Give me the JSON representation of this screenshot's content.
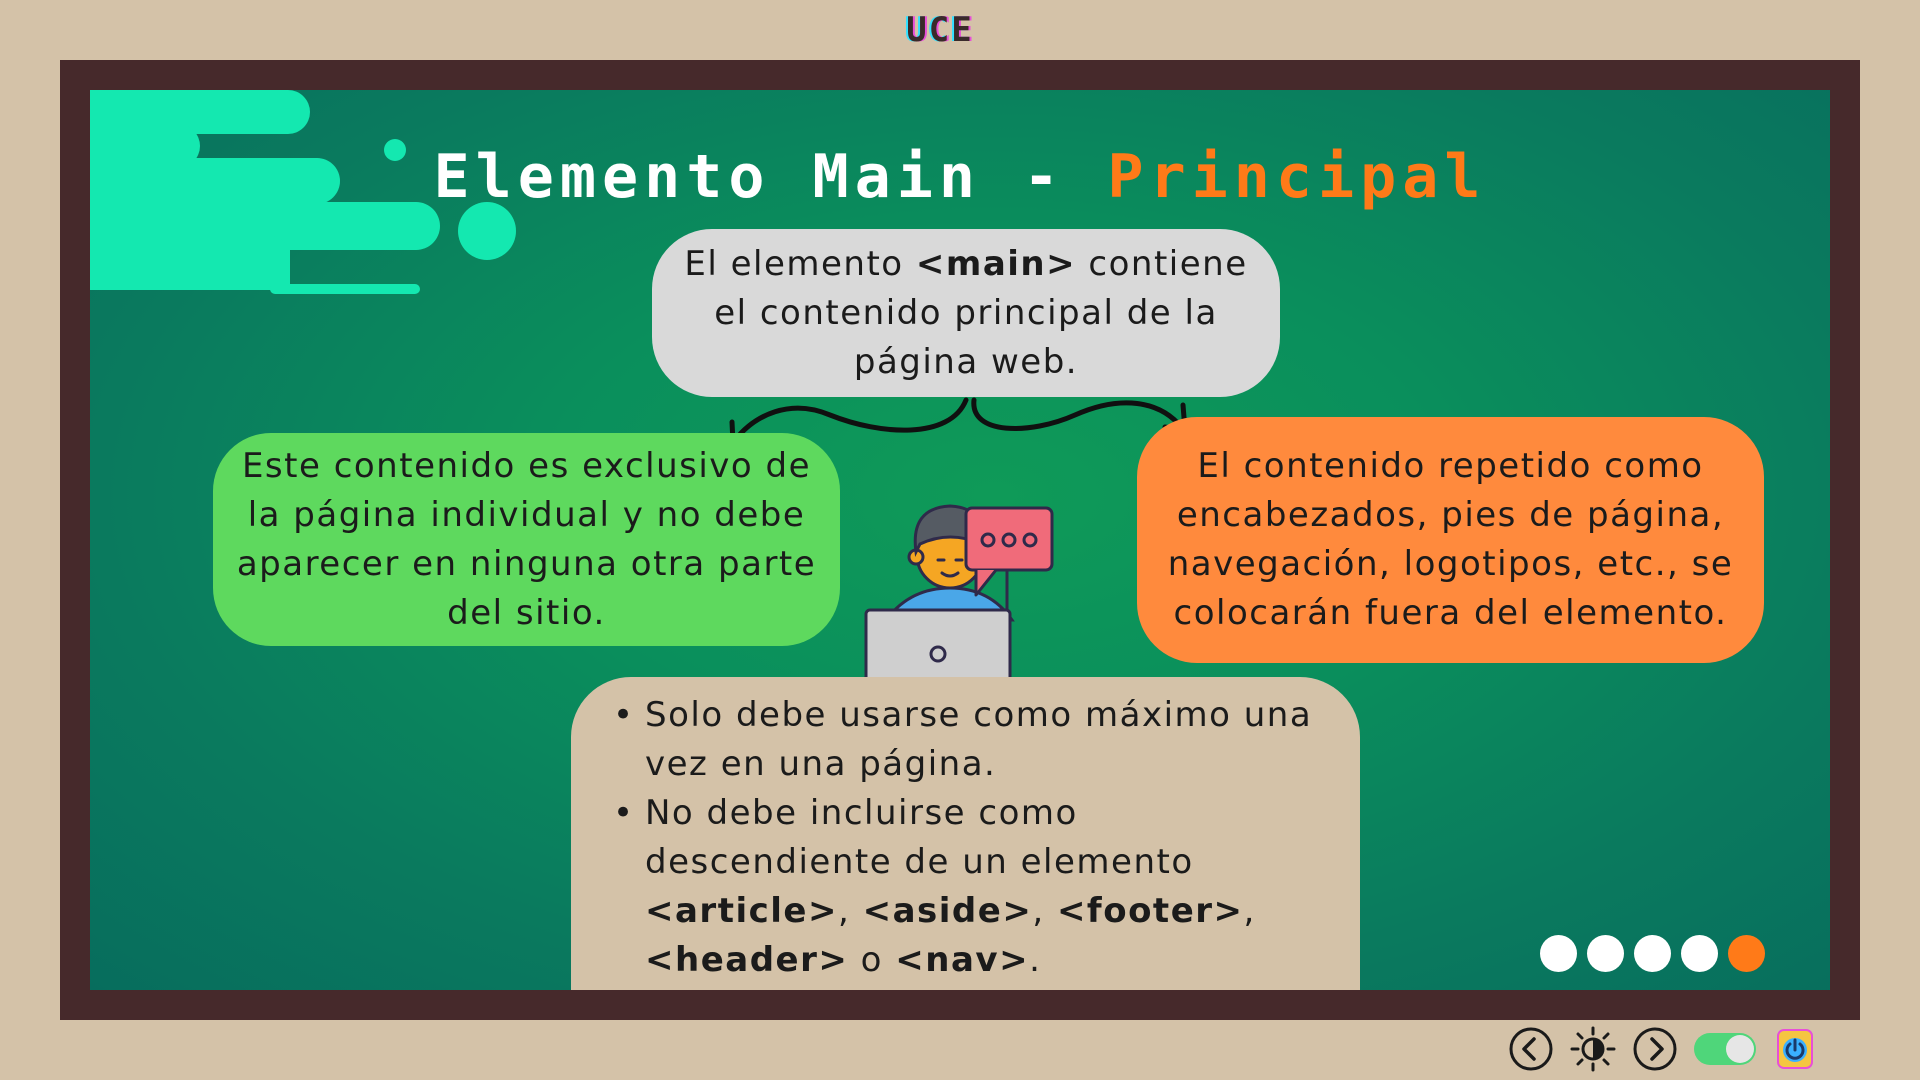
{
  "header": {
    "logo_text": "UCE"
  },
  "slide": {
    "title_main": "Elemento Main - ",
    "title_accent": "Principal",
    "bubble_top": {
      "pre": "El elemento ",
      "code": "<main>",
      "post": " contiene el contenido principal de la página web."
    },
    "bubble_left": "Este contenido es exclusivo de la página individual y no debe aparecer en ninguna otra parte del sitio.",
    "bubble_right": "El contenido repetido como encabezados, pies de página, navegación, logotipos, etc., se colocarán fuera del elemento.",
    "bubble_bottom": {
      "item1": "Solo debe usarse como máximo una vez en una página.",
      "item2_pre": "No debe incluirse como descendiente de un elemento ",
      "code1": "<article>",
      "sep1": ", ",
      "code2": "<aside>",
      "sep2": ", ",
      "code3": "<footer>",
      "sep3": ", ",
      "code4": "<header>",
      "sep4": " o ",
      "code5": "<nav>",
      "end": "."
    }
  },
  "pagination": {
    "total": 5,
    "current": 5
  },
  "controls": {
    "prev_icon": "chevron-left-icon",
    "theme_icon": "brightness-icon",
    "next_icon": "chevron-right-icon",
    "toggle_state": "on",
    "power_icon": "power-icon"
  },
  "colors": {
    "background": "#d4c2a8",
    "frame": "#46292b",
    "board": "#0a8f5c",
    "accent": "#ff7a18",
    "bubble_gray": "#d9d9d9",
    "bubble_green": "#5ed95e",
    "bubble_orange": "#ff8a3d",
    "bubble_beige": "#d4c2a8"
  }
}
